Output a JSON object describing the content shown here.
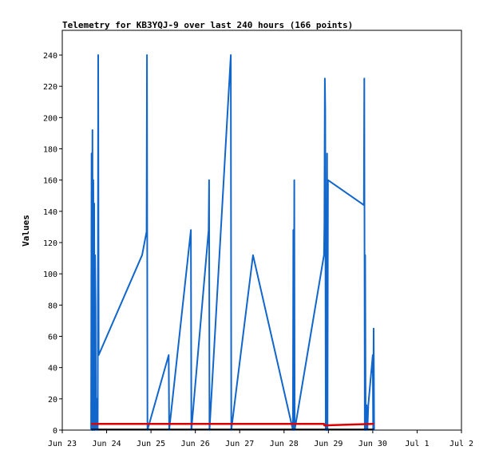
{
  "chart_data": {
    "type": "line",
    "title": "Telemetry for KB3YQJ-9 over last 240 hours (166 points)",
    "xlabel": "",
    "ylabel": "Values",
    "x_tick_labels": [
      "Jun 23",
      "Jun 24",
      "Jun 25",
      "Jun 26",
      "Jun 27",
      "Jun 28",
      "Jun 29",
      "Jun 30",
      "Jul 1",
      "Jul 2"
    ],
    "x_range_days": [
      0,
      9
    ],
    "y_ticks": [
      0,
      20,
      40,
      60,
      80,
      100,
      120,
      140,
      160,
      180,
      200,
      220,
      240
    ],
    "ylim": [
      0,
      240
    ],
    "grid": false,
    "series": [
      {
        "color": "#1166cc",
        "points": [
          [
            0.65,
            0
          ],
          [
            0.66,
            177
          ],
          [
            0.67,
            0
          ],
          [
            0.68,
            192
          ],
          [
            0.69,
            0
          ],
          [
            0.7,
            160
          ],
          [
            0.71,
            0
          ],
          [
            0.72,
            145
          ],
          [
            0.73,
            0
          ],
          [
            0.74,
            112
          ],
          [
            0.75,
            80
          ],
          [
            0.76,
            0
          ],
          [
            0.78,
            20
          ],
          [
            0.8,
            0
          ],
          [
            0.81,
            240
          ],
          [
            0.82,
            48
          ],
          [
            1.8,
            112
          ],
          [
            1.9,
            127
          ],
          [
            1.91,
            240
          ],
          [
            1.92,
            0
          ],
          [
            2.4,
            48
          ],
          [
            2.41,
            0
          ],
          [
            2.9,
            128
          ],
          [
            2.91,
            0
          ],
          [
            3.3,
            128
          ],
          [
            3.31,
            160
          ],
          [
            3.32,
            0
          ],
          [
            3.8,
            240
          ],
          [
            3.81,
            0
          ],
          [
            4.3,
            112
          ],
          [
            5.2,
            0
          ],
          [
            5.21,
            128
          ],
          [
            5.22,
            0
          ],
          [
            5.23,
            160
          ],
          [
            5.24,
            0
          ],
          [
            5.9,
            112
          ],
          [
            5.91,
            130
          ],
          [
            5.92,
            225
          ],
          [
            5.93,
            205
          ],
          [
            5.94,
            0
          ],
          [
            5.95,
            130
          ],
          [
            5.96,
            0
          ],
          [
            5.97,
            177
          ],
          [
            5.98,
            0
          ],
          [
            5.99,
            160
          ],
          [
            6.8,
            144
          ],
          [
            6.81,
            225
          ],
          [
            6.82,
            0
          ],
          [
            6.83,
            112
          ],
          [
            6.84,
            0
          ],
          [
            6.86,
            16
          ],
          [
            6.88,
            0
          ],
          [
            6.9,
            16
          ],
          [
            7.0,
            48
          ],
          [
            7.01,
            0
          ],
          [
            7.02,
            65
          ],
          [
            7.03,
            0
          ]
        ]
      },
      {
        "color": "#dd0000",
        "points": [
          [
            0.65,
            4
          ],
          [
            5.9,
            4
          ],
          [
            5.91,
            3
          ],
          [
            7.0,
            4
          ],
          [
            7.03,
            4
          ]
        ]
      }
    ]
  }
}
